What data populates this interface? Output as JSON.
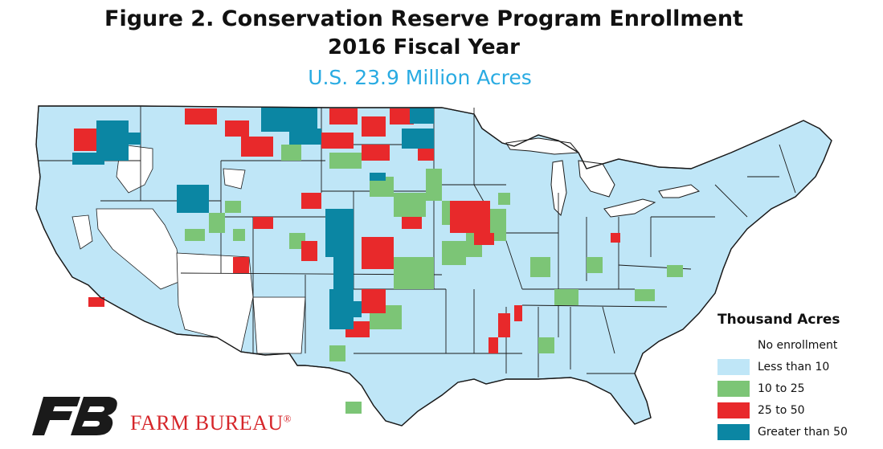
{
  "title_line1": "Figure 2. Conservation Reserve Program Enrollment",
  "title_line2": "2016 Fiscal Year",
  "subtitle": "U.S. 23.9 Million Acres",
  "legend": {
    "title": "Thousand Acres",
    "items": [
      {
        "label": "No enrollment",
        "color": "#ffffff"
      },
      {
        "label": "Less than 10",
        "color": "#bfe6f7"
      },
      {
        "label": "10 to 25",
        "color": "#7cc576"
      },
      {
        "label": "25 to 50",
        "color": "#e8292b"
      },
      {
        "label": "Greater than 50",
        "color": "#0b86a3"
      }
    ]
  },
  "brand": {
    "name": "FARM BUREAU",
    "mark": "®",
    "logo_icon": "fb-logo-icon",
    "logo_color": "#1a1a1a",
    "accent": "#d6262a"
  },
  "colors": {
    "subtitle": "#29abe2",
    "border": "#1a1a1a"
  }
}
